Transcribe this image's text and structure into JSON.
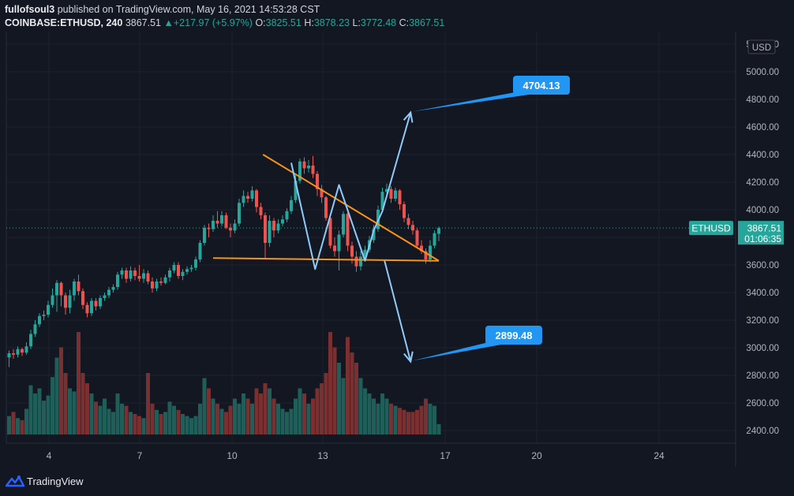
{
  "header": {
    "publisher": "fullofsoul3",
    "published_text": "published on TradingView.com, May 16, 2021 14:53:28 CST",
    "symbol": "COINBASE:ETHUSD, 240",
    "last": "3867.51",
    "change_arrow": "▲",
    "change": "+217.97 (+5.97%)",
    "o_label": "O:",
    "o_value": "3825.51",
    "h_label": "H:",
    "h_value": "3878.23",
    "l_label": "L:",
    "l_value": "3772.48",
    "c_label": "C:",
    "c_value": "3867.51"
  },
  "footer": {
    "brand": "TradingView",
    "logo_icon": "tradingview-logo-icon"
  },
  "colors": {
    "background": "#131722",
    "up": "#26a69a",
    "down": "#ef5350",
    "trendline": "#f7931a",
    "projection": "#90caf9",
    "callout": "#2196f3"
  },
  "chart_data": {
    "type": "candlestick",
    "symbol": "COINBASE:ETHUSD",
    "interval": "240",
    "currency": "USD",
    "ylim": [
      2250,
      5750
    ],
    "y_ticks": [
      "5200.00",
      "5000.00",
      "4800.00",
      "4600.00",
      "4400.00",
      "4200.00",
      "4000.00",
      "3800.00",
      "3600.00",
      "3400.00",
      "3200.00",
      "3000.00",
      "2800.00",
      "2600.00",
      "2400.00"
    ],
    "x_ticks": [
      "4",
      "7",
      "10",
      "13",
      "17",
      "20",
      "24"
    ],
    "price_label": {
      "symbol": "ETHUSD",
      "value": "3867.51",
      "countdown": "01:06:35"
    },
    "series": [
      {
        "o": 2930,
        "c": 2960,
        "h": 2980,
        "l": 2860,
        "v": 0.18
      },
      {
        "o": 2960,
        "c": 2950,
        "h": 2990,
        "l": 2920,
        "v": 0.22
      },
      {
        "o": 2950,
        "c": 2990,
        "h": 3010,
        "l": 2930,
        "v": 0.16
      },
      {
        "o": 2990,
        "c": 2965,
        "h": 3000,
        "l": 2940,
        "v": 0.14
      },
      {
        "o": 2965,
        "c": 3010,
        "h": 3040,
        "l": 2950,
        "v": 0.25
      },
      {
        "o": 3010,
        "c": 3100,
        "h": 3130,
        "l": 2990,
        "v": 0.48
      },
      {
        "o": 3100,
        "c": 3170,
        "h": 3200,
        "l": 3080,
        "v": 0.4
      },
      {
        "o": 3170,
        "c": 3230,
        "h": 3250,
        "l": 3150,
        "v": 0.45
      },
      {
        "o": 3230,
        "c": 3240,
        "h": 3270,
        "l": 3200,
        "v": 0.33
      },
      {
        "o": 3240,
        "c": 3310,
        "h": 3340,
        "l": 3220,
        "v": 0.38
      },
      {
        "o": 3310,
        "c": 3380,
        "h": 3430,
        "l": 3290,
        "v": 0.56
      },
      {
        "o": 3380,
        "c": 3470,
        "h": 3490,
        "l": 3260,
        "v": 0.75
      },
      {
        "o": 3470,
        "c": 3380,
        "h": 3480,
        "l": 3300,
        "v": 0.85
      },
      {
        "o": 3380,
        "c": 3290,
        "h": 3400,
        "l": 3240,
        "v": 0.6
      },
      {
        "o": 3290,
        "c": 3380,
        "h": 3420,
        "l": 3250,
        "v": 0.45
      },
      {
        "o": 3380,
        "c": 3480,
        "h": 3500,
        "l": 3340,
        "v": 0.42
      },
      {
        "o": 3480,
        "c": 3410,
        "h": 3530,
        "l": 3380,
        "v": 1.0
      },
      {
        "o": 3410,
        "c": 3310,
        "h": 3430,
        "l": 3280,
        "v": 0.6
      },
      {
        "o": 3310,
        "c": 3250,
        "h": 3330,
        "l": 3220,
        "v": 0.5
      },
      {
        "o": 3250,
        "c": 3340,
        "h": 3360,
        "l": 3230,
        "v": 0.4
      },
      {
        "o": 3340,
        "c": 3300,
        "h": 3360,
        "l": 3270,
        "v": 0.32
      },
      {
        "o": 3300,
        "c": 3360,
        "h": 3380,
        "l": 3280,
        "v": 0.28
      },
      {
        "o": 3360,
        "c": 3380,
        "h": 3400,
        "l": 3340,
        "v": 0.35
      },
      {
        "o": 3380,
        "c": 3420,
        "h": 3440,
        "l": 3360,
        "v": 0.25
      },
      {
        "o": 3420,
        "c": 3440,
        "h": 3460,
        "l": 3400,
        "v": 0.22
      },
      {
        "o": 3440,
        "c": 3530,
        "h": 3550,
        "l": 3420,
        "v": 0.4
      },
      {
        "o": 3530,
        "c": 3560,
        "h": 3580,
        "l": 3500,
        "v": 0.3
      },
      {
        "o": 3560,
        "c": 3500,
        "h": 3580,
        "l": 3470,
        "v": 0.28
      },
      {
        "o": 3500,
        "c": 3560,
        "h": 3590,
        "l": 3480,
        "v": 0.22
      },
      {
        "o": 3560,
        "c": 3520,
        "h": 3580,
        "l": 3490,
        "v": 0.2
      },
      {
        "o": 3520,
        "c": 3500,
        "h": 3600,
        "l": 3480,
        "v": 0.18
      },
      {
        "o": 3500,
        "c": 3540,
        "h": 3570,
        "l": 3470,
        "v": 0.16
      },
      {
        "o": 3540,
        "c": 3480,
        "h": 3560,
        "l": 3460,
        "v": 0.6
      },
      {
        "o": 3480,
        "c": 3430,
        "h": 3510,
        "l": 3400,
        "v": 0.3
      },
      {
        "o": 3430,
        "c": 3480,
        "h": 3500,
        "l": 3410,
        "v": 0.24
      },
      {
        "o": 3480,
        "c": 3470,
        "h": 3510,
        "l": 3450,
        "v": 0.2
      },
      {
        "o": 3470,
        "c": 3510,
        "h": 3530,
        "l": 3460,
        "v": 0.22
      },
      {
        "o": 3510,
        "c": 3560,
        "h": 3580,
        "l": 3480,
        "v": 0.32
      },
      {
        "o": 3560,
        "c": 3600,
        "h": 3620,
        "l": 3540,
        "v": 0.28
      },
      {
        "o": 3600,
        "c": 3520,
        "h": 3620,
        "l": 3500,
        "v": 0.24
      },
      {
        "o": 3520,
        "c": 3550,
        "h": 3570,
        "l": 3490,
        "v": 0.2
      },
      {
        "o": 3550,
        "c": 3570,
        "h": 3590,
        "l": 3530,
        "v": 0.18
      },
      {
        "o": 3570,
        "c": 3580,
        "h": 3600,
        "l": 3550,
        "v": 0.16
      },
      {
        "o": 3580,
        "c": 3640,
        "h": 3660,
        "l": 3560,
        "v": 0.18
      },
      {
        "o": 3640,
        "c": 3760,
        "h": 3780,
        "l": 3620,
        "v": 0.3
      },
      {
        "o": 3760,
        "c": 3870,
        "h": 3890,
        "l": 3740,
        "v": 0.55
      },
      {
        "o": 3870,
        "c": 3860,
        "h": 3900,
        "l": 3800,
        "v": 0.45
      },
      {
        "o": 3860,
        "c": 3920,
        "h": 3960,
        "l": 3840,
        "v": 0.35
      },
      {
        "o": 3920,
        "c": 3900,
        "h": 3990,
        "l": 3870,
        "v": 0.3
      },
      {
        "o": 3900,
        "c": 3960,
        "h": 3990,
        "l": 3880,
        "v": 0.25
      },
      {
        "o": 3960,
        "c": 3870,
        "h": 3980,
        "l": 3860,
        "v": 0.22
      },
      {
        "o": 3870,
        "c": 3850,
        "h": 3900,
        "l": 3800,
        "v": 0.28
      },
      {
        "o": 3850,
        "c": 3900,
        "h": 3930,
        "l": 3830,
        "v": 0.35
      },
      {
        "o": 3900,
        "c": 4050,
        "h": 4080,
        "l": 3880,
        "v": 0.3
      },
      {
        "o": 4050,
        "c": 4100,
        "h": 4140,
        "l": 4020,
        "v": 0.4
      },
      {
        "o": 4100,
        "c": 4080,
        "h": 4130,
        "l": 4050,
        "v": 0.35
      },
      {
        "o": 4080,
        "c": 4140,
        "h": 4170,
        "l": 4060,
        "v": 0.3
      },
      {
        "o": 4140,
        "c": 4020,
        "h": 4150,
        "l": 3980,
        "v": 0.45
      },
      {
        "o": 4020,
        "c": 3960,
        "h": 4050,
        "l": 3930,
        "v": 0.4
      },
      {
        "o": 3960,
        "c": 3760,
        "h": 3980,
        "l": 3650,
        "v": 0.5
      },
      {
        "o": 3760,
        "c": 3920,
        "h": 3960,
        "l": 3730,
        "v": 0.45
      },
      {
        "o": 3920,
        "c": 3850,
        "h": 3940,
        "l": 3800,
        "v": 0.35
      },
      {
        "o": 3850,
        "c": 3900,
        "h": 3930,
        "l": 3830,
        "v": 0.3
      },
      {
        "o": 3900,
        "c": 3930,
        "h": 3960,
        "l": 3880,
        "v": 0.25
      },
      {
        "o": 3930,
        "c": 3990,
        "h": 4010,
        "l": 3910,
        "v": 0.22
      },
      {
        "o": 3990,
        "c": 4070,
        "h": 4100,
        "l": 3970,
        "v": 0.25
      },
      {
        "o": 4070,
        "c": 4210,
        "h": 4260,
        "l": 4050,
        "v": 0.35
      },
      {
        "o": 4210,
        "c": 4350,
        "h": 4370,
        "l": 4190,
        "v": 0.45
      },
      {
        "o": 4350,
        "c": 4300,
        "h": 4380,
        "l": 4260,
        "v": 0.4
      },
      {
        "o": 4300,
        "c": 4320,
        "h": 4360,
        "l": 4270,
        "v": 0.3
      },
      {
        "o": 4320,
        "c": 4260,
        "h": 4390,
        "l": 4230,
        "v": 0.35
      },
      {
        "o": 4260,
        "c": 4150,
        "h": 4280,
        "l": 4100,
        "v": 0.45
      },
      {
        "o": 4150,
        "c": 4090,
        "h": 4180,
        "l": 4050,
        "v": 0.5
      },
      {
        "o": 4090,
        "c": 3940,
        "h": 4100,
        "l": 3920,
        "v": 0.6
      },
      {
        "o": 3940,
        "c": 3740,
        "h": 3960,
        "l": 3720,
        "v": 1.0
      },
      {
        "o": 3740,
        "c": 3700,
        "h": 3800,
        "l": 3660,
        "v": 0.85
      },
      {
        "o": 3700,
        "c": 3820,
        "h": 3850,
        "l": 3560,
        "v": 0.7
      },
      {
        "o": 3820,
        "c": 3970,
        "h": 3990,
        "l": 3800,
        "v": 0.55
      },
      {
        "o": 3970,
        "c": 3740,
        "h": 3980,
        "l": 3700,
        "v": 0.95
      },
      {
        "o": 3740,
        "c": 3660,
        "h": 3770,
        "l": 3610,
        "v": 0.8
      },
      {
        "o": 3660,
        "c": 3590,
        "h": 3700,
        "l": 3550,
        "v": 0.7
      },
      {
        "o": 3590,
        "c": 3660,
        "h": 3700,
        "l": 3560,
        "v": 0.55
      },
      {
        "o": 3660,
        "c": 3710,
        "h": 3740,
        "l": 3630,
        "v": 0.45
      },
      {
        "o": 3710,
        "c": 3780,
        "h": 3810,
        "l": 3690,
        "v": 0.4
      },
      {
        "o": 3780,
        "c": 3860,
        "h": 3890,
        "l": 3760,
        "v": 0.35
      },
      {
        "o": 3860,
        "c": 4000,
        "h": 4030,
        "l": 3840,
        "v": 0.3
      },
      {
        "o": 4000,
        "c": 4130,
        "h": 4160,
        "l": 3980,
        "v": 0.4
      },
      {
        "o": 4130,
        "c": 4150,
        "h": 4190,
        "l": 4100,
        "v": 0.35
      },
      {
        "o": 4150,
        "c": 4080,
        "h": 4170,
        "l": 4050,
        "v": 0.3
      },
      {
        "o": 4080,
        "c": 4140,
        "h": 4160,
        "l": 4060,
        "v": 0.28
      },
      {
        "o": 4140,
        "c": 4040,
        "h": 4150,
        "l": 4000,
        "v": 0.26
      },
      {
        "o": 4040,
        "c": 3940,
        "h": 4060,
        "l": 3910,
        "v": 0.24
      },
      {
        "o": 3940,
        "c": 3890,
        "h": 3970,
        "l": 3860,
        "v": 0.22
      },
      {
        "o": 3890,
        "c": 3850,
        "h": 3920,
        "l": 3820,
        "v": 0.22
      },
      {
        "o": 3850,
        "c": 3740,
        "h": 3870,
        "l": 3720,
        "v": 0.24
      },
      {
        "o": 3740,
        "c": 3700,
        "h": 3780,
        "l": 3680,
        "v": 0.28
      },
      {
        "o": 3700,
        "c": 3640,
        "h": 3720,
        "l": 3610,
        "v": 0.35
      },
      {
        "o": 3640,
        "c": 3740,
        "h": 3780,
        "l": 3620,
        "v": 0.3
      },
      {
        "o": 3740,
        "c": 3830,
        "h": 3850,
        "l": 3720,
        "v": 0.28
      },
      {
        "o": 3825.51,
        "c": 3867.51,
        "h": 3878.23,
        "l": 3772.48,
        "v": 0.1
      }
    ],
    "trendlines": [
      {
        "name": "resistance",
        "points": [
          [
            58.5,
            4400
          ],
          [
            99,
            3630
          ]
        ]
      },
      {
        "name": "support",
        "points": [
          [
            47,
            3650
          ],
          [
            99,
            3630
          ]
        ]
      }
    ],
    "pattern_path": [
      [
        65,
        4340
      ],
      [
        70.5,
        3570
      ],
      [
        76,
        4180
      ],
      [
        82,
        3630
      ],
      [
        84,
        3850
      ],
      [
        86,
        3990
      ],
      [
        92.5,
        4705
      ]
    ],
    "projection_down": [
      [
        86.5,
        3630
      ],
      [
        92.5,
        2900
      ]
    ],
    "targets": [
      {
        "label": "4704.13",
        "value": 4704.13
      },
      {
        "label": "2899.48",
        "value": 2899.48
      }
    ]
  }
}
